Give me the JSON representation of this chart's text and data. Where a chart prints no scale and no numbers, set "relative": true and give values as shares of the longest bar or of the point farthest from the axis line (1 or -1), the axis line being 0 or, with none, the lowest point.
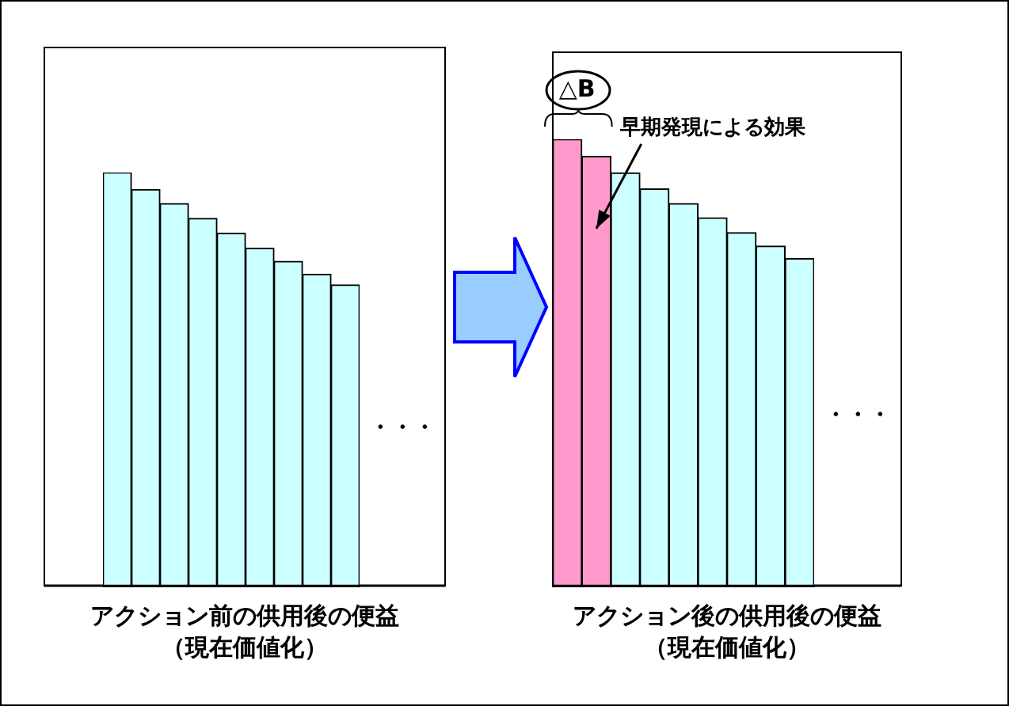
{
  "chart_data": [
    {
      "type": "bar",
      "relative": true,
      "xlabel": "アクション前の供用後の便益（現在価値化）",
      "categories": [
        null,
        null,
        null,
        null,
        null,
        null,
        null,
        null,
        null
      ],
      "values": [
        1,
        0.959,
        0.925,
        0.889,
        0.853,
        0.817,
        0.785,
        0.754,
        0.728
      ],
      "color": "#ccffff",
      "annotations": [
        "・・・"
      ]
    },
    {
      "type": "bar",
      "relative": true,
      "xlabel": "アクション後の供用後の便益（現在価値化）",
      "categories": [
        null,
        null,
        null,
        null,
        null,
        null,
        null,
        null,
        null
      ],
      "values": [
        1,
        0.962,
        0.925,
        0.889,
        0.856,
        0.824,
        0.791,
        0.761,
        0.733
      ],
      "colors": [
        "#ff99cc",
        "#ff99cc",
        "#ccffff",
        "#ccffff",
        "#ccffff",
        "#ccffff",
        "#ccffff",
        "#ccffff",
        "#ccffff"
      ],
      "annotations": [
        "△B",
        "早期発現による効果",
        "・・・"
      ]
    }
  ]
}
